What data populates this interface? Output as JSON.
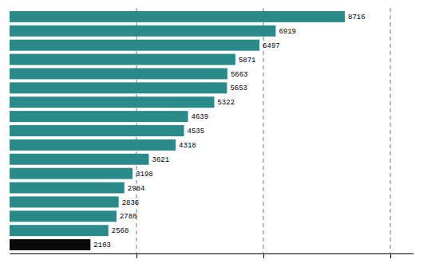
{
  "chart_data": {
    "type": "bar",
    "orientation": "horizontal",
    "categories": [
      null,
      null,
      null,
      null,
      null,
      null,
      null,
      null,
      null,
      null,
      null,
      null,
      null,
      null,
      null,
      null,
      null
    ],
    "values": [
      8716,
      6919,
      6497,
      5871,
      5663,
      5653,
      5322,
      4639,
      4535,
      4318,
      3621,
      3198,
      2984,
      2836,
      2780,
      2568,
      2103
    ],
    "colors": [
      "#2a8a8a",
      "#2a8a8a",
      "#2a8a8a",
      "#2a8a8a",
      "#2a8a8a",
      "#2a8a8a",
      "#2a8a8a",
      "#2a8a8a",
      "#2a8a8a",
      "#2a8a8a",
      "#2a8a8a",
      "#2a8a8a",
      "#2a8a8a",
      "#2a8a8a",
      "#2a8a8a",
      "#2a8a8a",
      "#0a0a0a"
    ],
    "xlim": [
      0,
      10500
    ],
    "xticks": [
      3300,
      6600,
      9900
    ],
    "grid": true,
    "tick_labels": false,
    "data_labels": true
  }
}
